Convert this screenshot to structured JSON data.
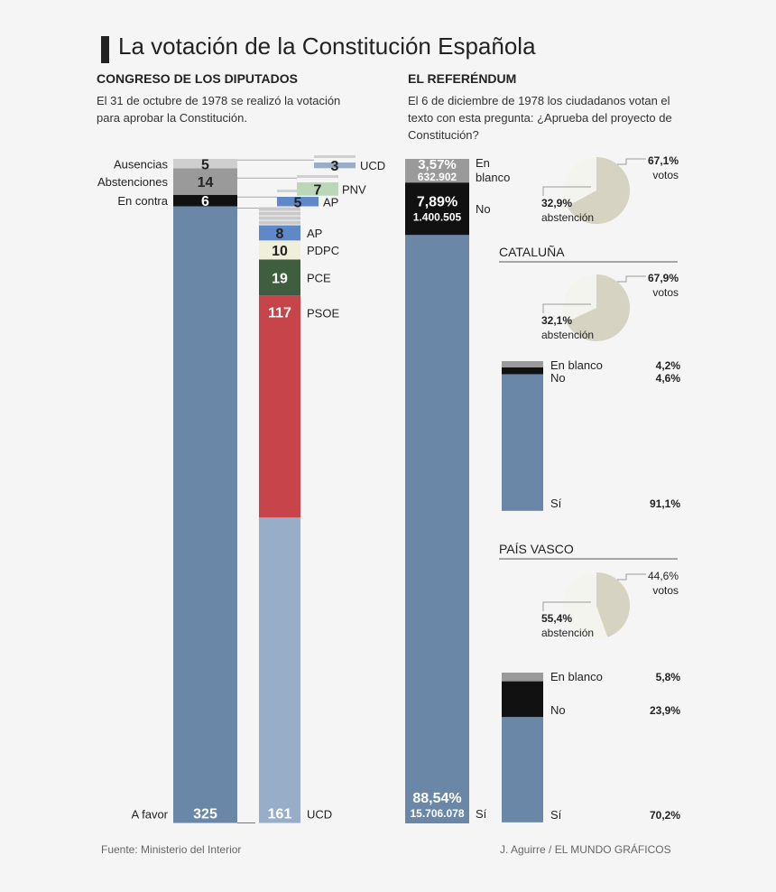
{
  "title": "La votación de la Constitución Española",
  "left": {
    "heading": "CONGRESO DE LOS DIPUTADOS",
    "intro": "El 31 de octubre de 1978 se realizó la votación para aprobar la Constitución."
  },
  "right": {
    "heading": "EL REFERÉNDUM",
    "intro": "El 6 de diciembre de 1978 los ciudadanos votan el texto con esta pregunta: ¿Aprueba del proyecto de Constitución?"
  },
  "footer": {
    "source": "Fuente: Ministerio del Interior",
    "credit": "J. Aguirre / EL MUNDO GRÁFICOS"
  },
  "colors": {
    "favor": "#6a87a8",
    "favor_light": "#97adc8",
    "ausencias": "#cfcfcf",
    "abstenciones": "#9a9a9a",
    "contra": "#111111",
    "ap": "#5f88c9",
    "pdpc": "#efefdc",
    "pce": "#3f5e3f",
    "psoe": "#c6444a",
    "pnv": "#bcd6b8",
    "blanco": "#9a9a9a",
    "no": "#111111",
    "pie_votos": "#d6d3c3",
    "pie_abst": "#f4f4ef"
  },
  "chart_data": [
    {
      "type": "bar",
      "name": "Congreso",
      "categories": [
        "A favor",
        "En contra",
        "Abstenciones",
        "Ausencias"
      ],
      "values": [
        325,
        6,
        14,
        5
      ]
    },
    {
      "type": "bar",
      "name": "Breakdown by party",
      "series": [
        {
          "name": "A favor",
          "parties": [
            "UCD",
            "PSOE",
            "PCE",
            "PDPC",
            "AP"
          ],
          "values": [
            161,
            117,
            19,
            10,
            8
          ]
        },
        {
          "name": "En contra",
          "parties": [
            "AP"
          ],
          "values": [
            5
          ]
        },
        {
          "name": "Abstenciones",
          "parties": [
            "PNV"
          ],
          "values": [
            7
          ]
        },
        {
          "name": "Ausencias",
          "parties": [
            "UCD"
          ],
          "values": [
            3
          ]
        }
      ]
    },
    {
      "type": "bar",
      "name": "Referéndum",
      "categories": [
        "Sí",
        "No",
        "En blanco"
      ],
      "percent_labels": [
        "88,54%",
        "7,89%",
        "3,57%"
      ],
      "count_labels": [
        "15.706.078",
        "1.400.505",
        "632.902"
      ],
      "values": [
        88.54,
        7.89,
        3.57
      ],
      "counts": [
        15706078,
        1400505,
        632902
      ]
    },
    {
      "type": "pie",
      "name": "Participación España",
      "categories": [
        "votos",
        "abstención"
      ],
      "labels": [
        "67,1%",
        "32,9%"
      ],
      "values": [
        67.1,
        32.9
      ]
    },
    {
      "type": "pie",
      "name": "Participación Cataluña",
      "region": "CATALUÑA",
      "categories": [
        "votos",
        "abstención"
      ],
      "labels": [
        "67,9%",
        "32,1%"
      ],
      "values": [
        67.9,
        32.1
      ]
    },
    {
      "type": "bar",
      "name": "Resultado Cataluña",
      "region": "CATALUÑA",
      "categories": [
        "En blanco",
        "No",
        "Sí"
      ],
      "labels": [
        "4,2%",
        "4,6%",
        "91,1%"
      ],
      "values": [
        4.2,
        4.6,
        91.1
      ]
    },
    {
      "type": "pie",
      "name": "Participación País Vasco",
      "region": "PAÍS VASCO",
      "categories": [
        "votos",
        "abstención"
      ],
      "labels": [
        "44,6%",
        "55,4%"
      ],
      "values": [
        44.6,
        55.4
      ]
    },
    {
      "type": "bar",
      "name": "Resultado País Vasco",
      "region": "PAÍS VASCO",
      "categories": [
        "En blanco",
        "No",
        "Sí"
      ],
      "labels": [
        "5,8%",
        "23,9%",
        "70,2%"
      ],
      "values": [
        5.8,
        23.9,
        70.2
      ]
    }
  ]
}
